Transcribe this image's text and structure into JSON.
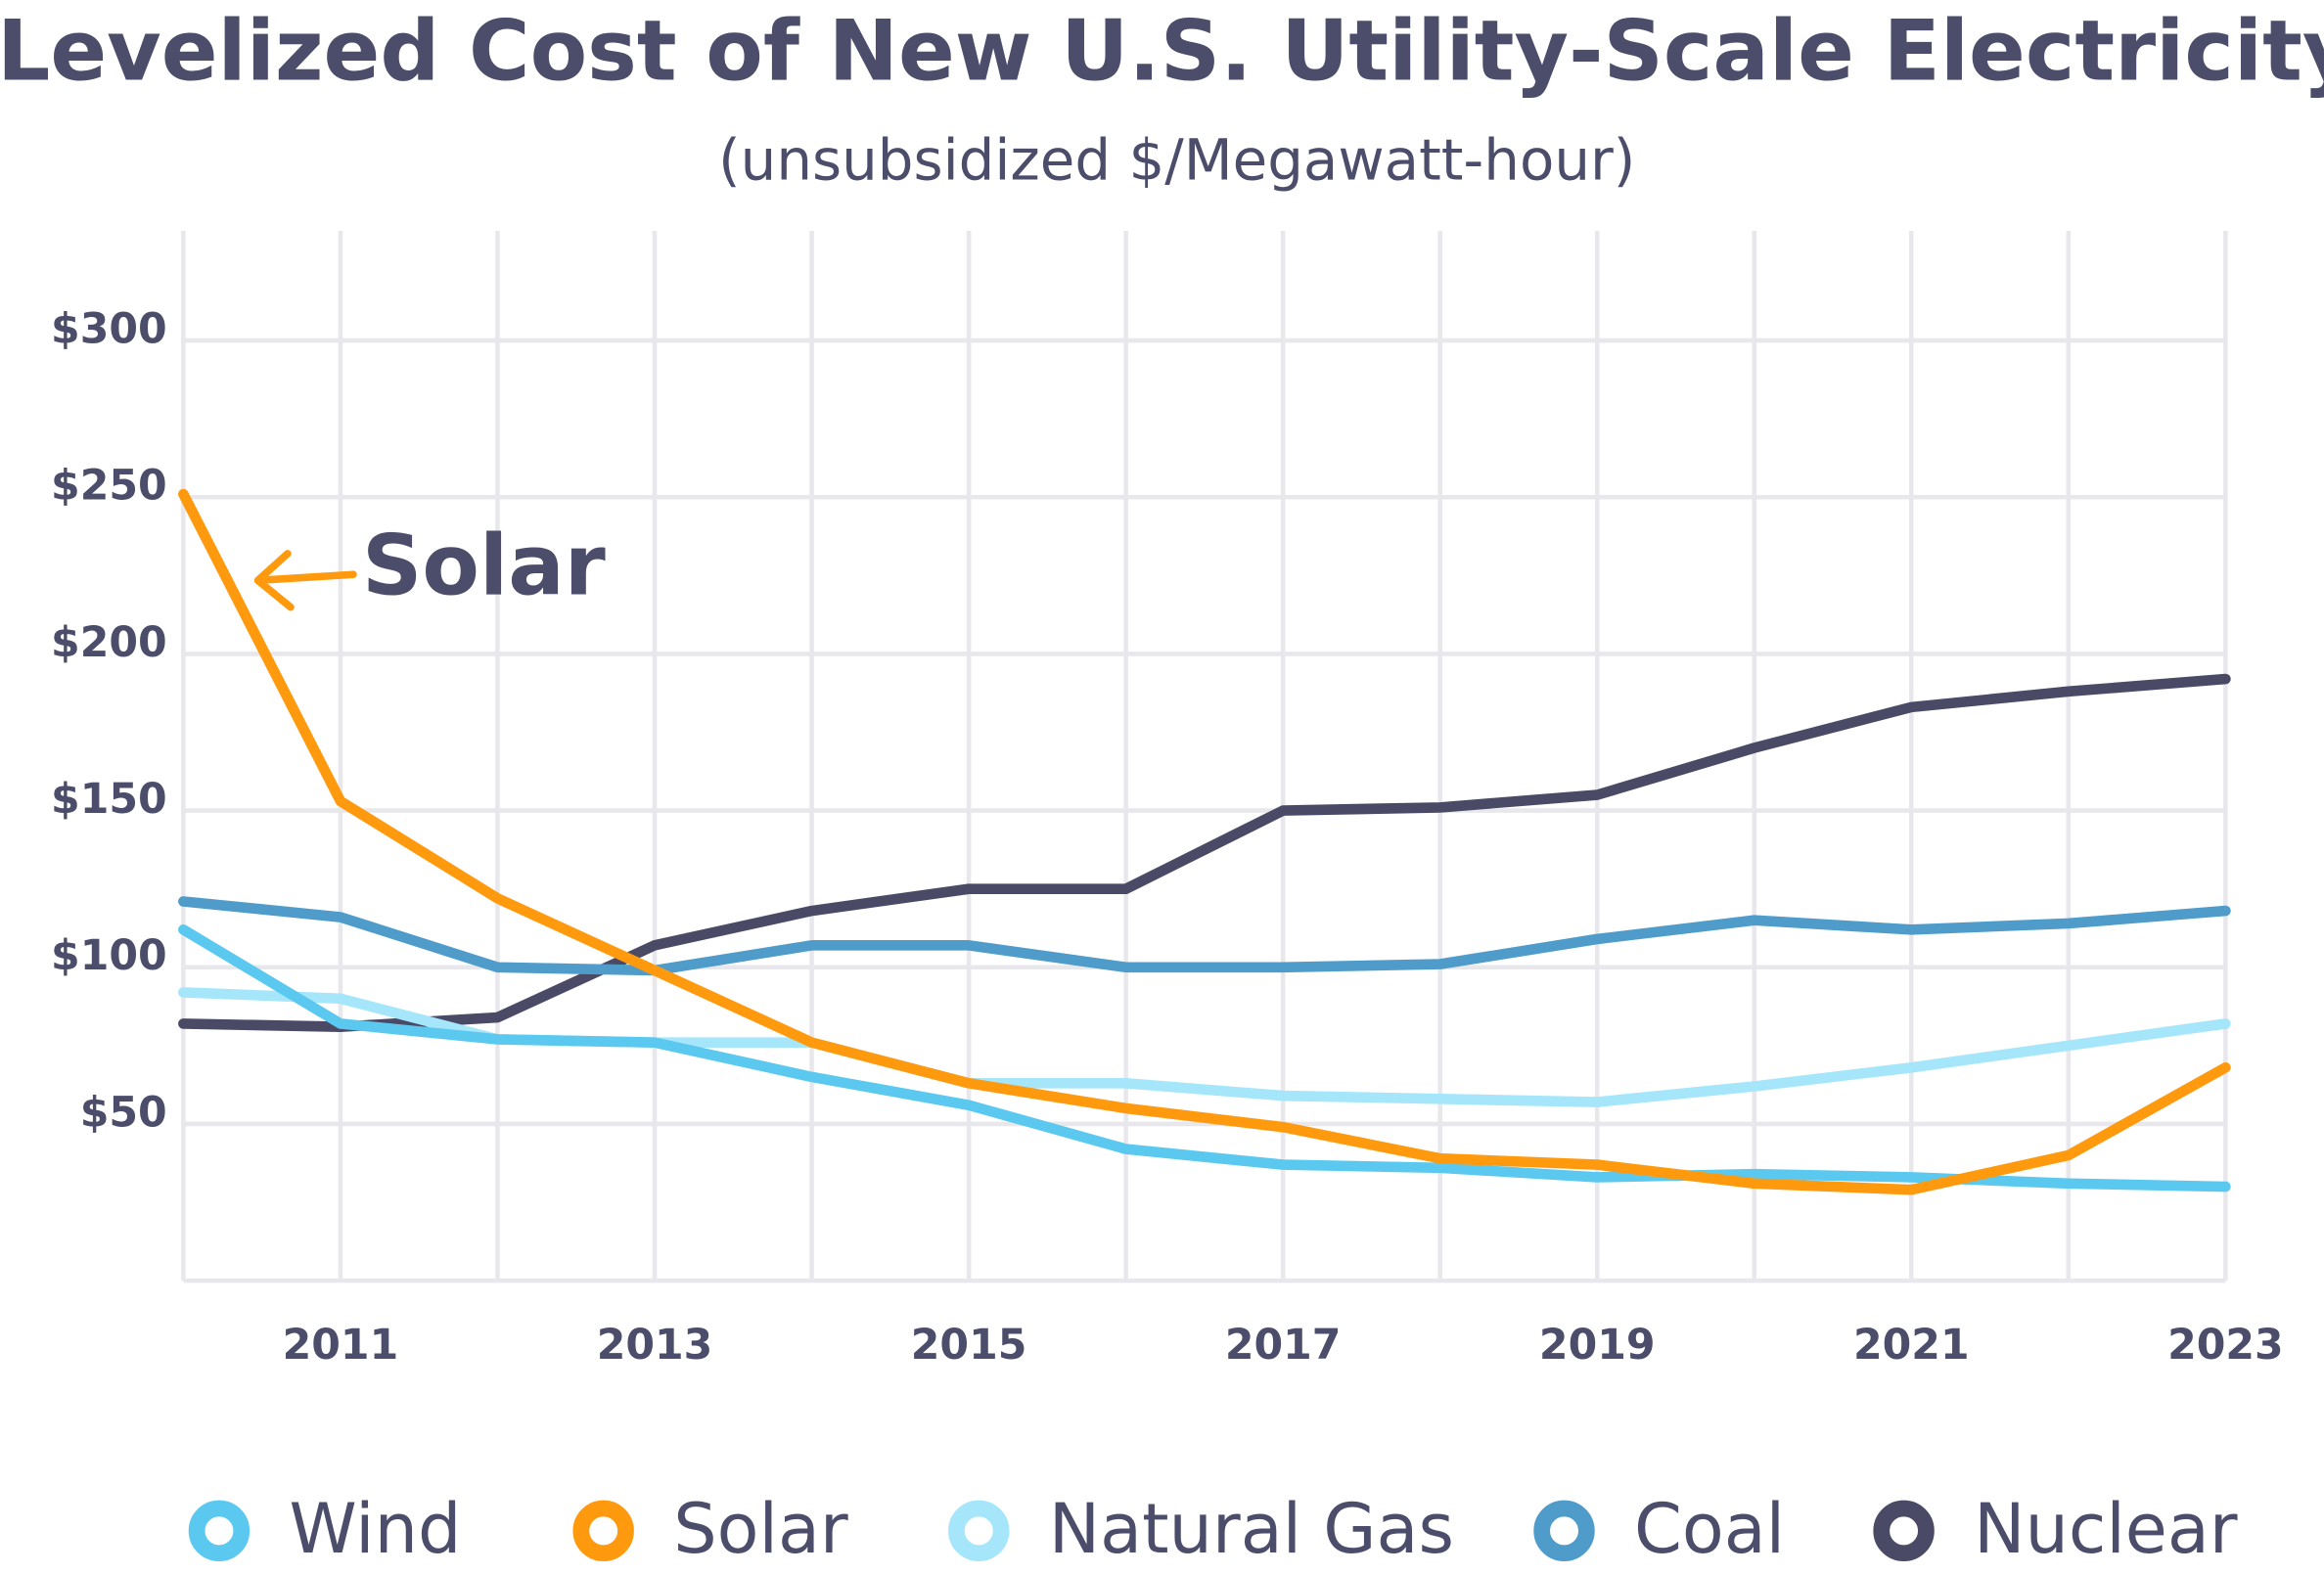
{
  "chart_data": {
    "type": "line",
    "title": "Levelized Cost of New U.S. Utility-Scale Electricity",
    "subtitle": "(unsubsidized $/Megawatt-hour)",
    "annotation": "Solar",
    "x": [
      2010,
      2011,
      2012,
      2013,
      2014,
      2015,
      2016,
      2017,
      2018,
      2019,
      2020,
      2021,
      2022,
      2023
    ],
    "xlim": [
      2010,
      2023
    ],
    "xticks": [
      2011,
      2013,
      2015,
      2017,
      2019,
      2021,
      2023
    ],
    "ylim": [
      0,
      335
    ],
    "yticks": [
      {
        "value": 50,
        "label": "$50"
      },
      {
        "value": 100,
        "label": "$100"
      },
      {
        "value": 150,
        "label": "$150"
      },
      {
        "value": 200,
        "label": "$200"
      },
      {
        "value": 250,
        "label": "$250"
      },
      {
        "value": 300,
        "label": "$300"
      }
    ],
    "grid": true,
    "legend": "bottom",
    "series": [
      {
        "name": "Wind",
        "color": "#5bc8f0",
        "values": [
          112,
          82,
          77,
          76,
          65,
          56,
          42,
          37,
          36,
          33,
          34,
          33,
          31,
          30
        ]
      },
      {
        "name": "Solar",
        "color": "#ff9a0e",
        "values": [
          251,
          153,
          122,
          99,
          76,
          63,
          55,
          49,
          39,
          37,
          31,
          29,
          40,
          68
        ]
      },
      {
        "name": "Natural Gas",
        "color": "#a6e6fb",
        "values": [
          92,
          90,
          77,
          76,
          76,
          63,
          63,
          59,
          58,
          57,
          62,
          68,
          75,
          82
        ]
      },
      {
        "name": "Coal",
        "color": "#4f9ccb",
        "values": [
          121,
          116,
          100,
          99,
          107,
          107,
          100,
          100,
          101,
          109,
          115,
          112,
          114,
          118
        ]
      },
      {
        "name": "Nuclear",
        "color": "#4a4a66",
        "values": [
          82,
          81,
          84,
          107,
          118,
          125,
          125,
          150,
          151,
          155,
          170,
          183,
          188,
          192
        ]
      }
    ]
  }
}
